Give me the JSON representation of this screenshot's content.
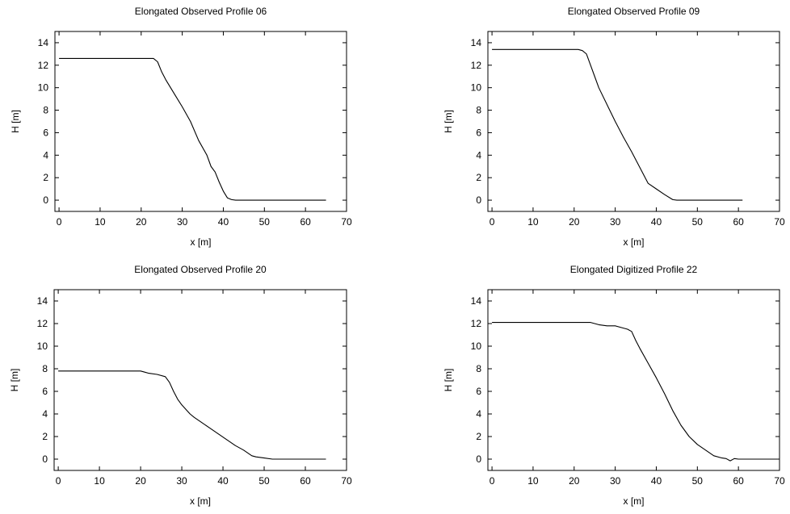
{
  "chart_data": [
    {
      "type": "line",
      "title": "Elongated Observed Profile 06",
      "xlabel": "x [m]",
      "ylabel": "H [m]",
      "xlim": [
        -1,
        70
      ],
      "ylim": [
        -1,
        15
      ],
      "xticks": [
        0,
        10,
        20,
        30,
        40,
        50,
        60,
        70
      ],
      "yticks": [
        0,
        2,
        4,
        6,
        8,
        10,
        12,
        14
      ],
      "grid": false,
      "series": [
        {
          "x": [
            0,
            23,
            24,
            25,
            26,
            28,
            30,
            32,
            34,
            36,
            37,
            38,
            39,
            40,
            41,
            42,
            43,
            45,
            50,
            65
          ],
          "y": [
            12.6,
            12.6,
            12.3,
            11.4,
            10.7,
            9.5,
            8.3,
            7.0,
            5.3,
            4.0,
            3.0,
            2.5,
            1.6,
            0.8,
            0.2,
            0.05,
            0.0,
            0.0,
            0.0,
            0.0
          ]
        }
      ]
    },
    {
      "type": "line",
      "title": "Elongated Observed Profile 09",
      "xlabel": "x [m]",
      "ylabel": "H [m]",
      "xlim": [
        -1,
        70
      ],
      "ylim": [
        -1,
        15
      ],
      "xticks": [
        0,
        10,
        20,
        30,
        40,
        50,
        60,
        70
      ],
      "yticks": [
        0,
        2,
        4,
        6,
        8,
        10,
        12,
        14
      ],
      "grid": false,
      "series": [
        {
          "x": [
            0,
            21,
            22,
            23,
            24,
            25,
            26,
            28,
            30,
            32,
            34,
            36,
            38,
            40,
            42,
            44,
            45,
            50,
            61
          ],
          "y": [
            13.4,
            13.4,
            13.3,
            13.0,
            12.0,
            11.0,
            10.0,
            8.5,
            7.0,
            5.6,
            4.3,
            2.9,
            1.5,
            1.0,
            0.5,
            0.05,
            0.0,
            0.0,
            0.0
          ]
        }
      ]
    },
    {
      "type": "line",
      "title": "Elongated Observed Profile 20",
      "xlabel": "x [m]",
      "ylabel": "H [m]",
      "xlim": [
        -1,
        70
      ],
      "ylim": [
        -1,
        15
      ],
      "xticks": [
        0,
        10,
        20,
        30,
        40,
        50,
        60,
        70
      ],
      "yticks": [
        0,
        2,
        4,
        6,
        8,
        10,
        12,
        14
      ],
      "grid": false,
      "series": [
        {
          "x": [
            0,
            20,
            21,
            22,
            24,
            26,
            27,
            28,
            29,
            30,
            32,
            33,
            35,
            37,
            39,
            41,
            43,
            45,
            47,
            48,
            50,
            52,
            53,
            65
          ],
          "y": [
            7.8,
            7.8,
            7.7,
            7.6,
            7.5,
            7.3,
            6.8,
            6.0,
            5.3,
            4.8,
            4.0,
            3.7,
            3.2,
            2.7,
            2.2,
            1.7,
            1.2,
            0.8,
            0.3,
            0.2,
            0.1,
            0.0,
            0.0,
            0.0
          ]
        }
      ]
    },
    {
      "type": "line",
      "title": "Elongated Digitized Profile 22",
      "xlabel": "x [m]",
      "ylabel": "H [m]",
      "xlim": [
        -1,
        70
      ],
      "ylim": [
        -1,
        15
      ],
      "xticks": [
        0,
        10,
        20,
        30,
        40,
        50,
        60,
        70
      ],
      "yticks": [
        0,
        2,
        4,
        6,
        8,
        10,
        12,
        14
      ],
      "grid": false,
      "series": [
        {
          "x": [
            0,
            20,
            24,
            25,
            26,
            28,
            30,
            32,
            33,
            34,
            35,
            36,
            38,
            40,
            42,
            44,
            46,
            48,
            50,
            52,
            54,
            56,
            57,
            58,
            59,
            60,
            65,
            70
          ],
          "y": [
            12.1,
            12.1,
            12.1,
            12.0,
            11.9,
            11.8,
            11.8,
            11.6,
            11.5,
            11.3,
            10.5,
            9.8,
            8.5,
            7.2,
            5.8,
            4.3,
            3.0,
            2.0,
            1.3,
            0.8,
            0.3,
            0.1,
            0.05,
            -0.15,
            0.05,
            0.0,
            0.0,
            0.0
          ]
        }
      ]
    }
  ]
}
